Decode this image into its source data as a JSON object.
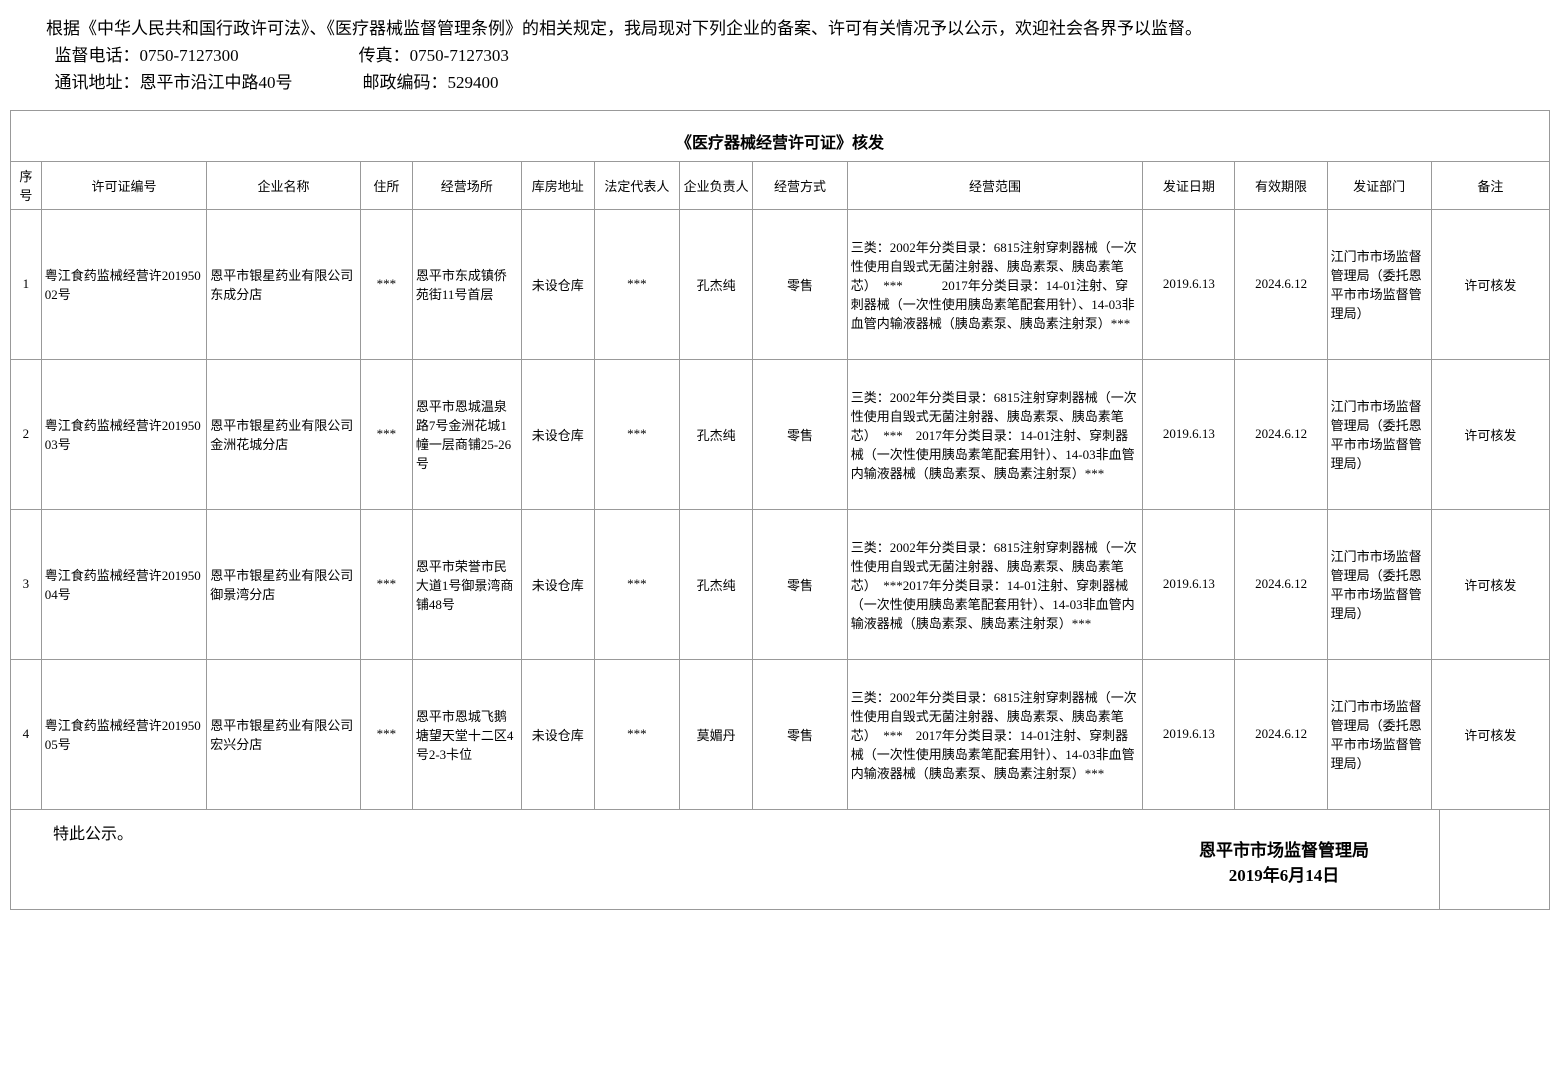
{
  "intro": {
    "line1": "根据《中华人民共和国行政许可法》、《医疗器械监督管理条例》的相关规定，我局现对下列企业的备案、许可有关情况予以公示，欢迎社会各界予以监督。",
    "contact1_label": "监督电话：",
    "contact1_value": "0750-7127300",
    "fax_label": "传真：",
    "fax_value": "0750-7127303",
    "addr_label": "通讯地址：",
    "addr_value": "恩平市沿江中路40号",
    "postal_label": "邮政编码：",
    "postal_value": "529400"
  },
  "table_title": "《医疗器械经营许可证》核发",
  "headers": {
    "seq": "序号",
    "license": "许可证编号",
    "company": "企业名称",
    "addr": "住所",
    "bizaddr": "经营场所",
    "warehouse": "库房地址",
    "legal": "法定代表人",
    "owner": "企业负责人",
    "mode": "经营方式",
    "scope": "经营范围",
    "issue": "发证日期",
    "valid": "有效期限",
    "dept": "发证部门",
    "note": "备注"
  },
  "rows": [
    {
      "seq": "1",
      "license": "粤江食药监械经营许20195002号",
      "company": "恩平市银星药业有限公司东成分店",
      "addr": "***",
      "bizaddr": "恩平市东成镇侨苑街11号首层",
      "warehouse": "未设仓库",
      "legal": "***",
      "owner": "孔杰纯",
      "mode": "零售",
      "scope": "三类：2002年分类目录：6815注射穿刺器械（一次性使用自毁式无菌注射器、胰岛素泵、胰岛素笔芯）　***　　　2017年分类目录：14-01注射、穿刺器械（一次性使用胰岛素笔配套用针）、14-03非血管内输液器械（胰岛素泵、胰岛素注射泵）***",
      "issue": "2019.6.13",
      "valid": "2024.6.12",
      "dept": "江门市市场监督管理局（委托恩平市市场监督管理局）",
      "note": "许可核发"
    },
    {
      "seq": "2",
      "license": "粤江食药监械经营许20195003号",
      "company": "恩平市银星药业有限公司金洲花城分店",
      "addr": "***",
      "bizaddr": "恩平市恩城温泉路7号金洲花城1幢一层商铺25-26号",
      "warehouse": "未设仓库",
      "legal": "***",
      "owner": "孔杰纯",
      "mode": "零售",
      "scope": "三类：2002年分类目录：6815注射穿刺器械（一次性使用自毁式无菌注射器、胰岛素泵、胰岛素笔芯）　***　2017年分类目录：14-01注射、穿刺器械（一次性使用胰岛素笔配套用针）、14-03非血管内输液器械（胰岛素泵、胰岛素注射泵）***",
      "issue": "2019.6.13",
      "valid": "2024.6.12",
      "dept": "江门市市场监督管理局（委托恩平市市场监督管理局）",
      "note": "许可核发"
    },
    {
      "seq": "3",
      "license": "粤江食药监械经营许20195004号",
      "company": "恩平市银星药业有限公司御景湾分店",
      "addr": "***",
      "bizaddr": "恩平市荣誉市民大道1号御景湾商铺48号",
      "warehouse": "未设仓库",
      "legal": "***",
      "owner": "孔杰纯",
      "mode": "零售",
      "scope": "三类：2002年分类目录：6815注射穿刺器械（一次性使用自毁式无菌注射器、胰岛素泵、胰岛素笔芯）　***2017年分类目录：14-01注射、穿刺器械（一次性使用胰岛素笔配套用针）、14-03非血管内输液器械（胰岛素泵、胰岛素注射泵）***",
      "issue": "2019.6.13",
      "valid": "2024.6.12",
      "dept": "江门市市场监督管理局（委托恩平市市场监督管理局）",
      "note": "许可核发"
    },
    {
      "seq": "4",
      "license": "粤江食药监械经营许20195005号",
      "company": "恩平市银星药业有限公司宏兴分店",
      "addr": "***",
      "bizaddr": "恩平市恩城飞鹅塘望天堂十二区4号2-3卡位",
      "warehouse": "未设仓库",
      "legal": "***",
      "owner": "莫媚丹",
      "mode": "零售",
      "scope": "三类：2002年分类目录：6815注射穿刺器械（一次性使用自毁式无菌注射器、胰岛素泵、胰岛素笔芯）　***　2017年分类目录：14-01注射、穿刺器械（一次性使用胰岛素笔配套用针）、14-03非血管内输液器械（胰岛素泵、胰岛素注射泵）***",
      "issue": "2019.6.13",
      "valid": "2024.6.12",
      "dept": "江门市市场监督管理局（委托恩平市市场监督管理局）",
      "note": "许可核发"
    }
  ],
  "footer": {
    "left": "特此公示。",
    "agency": "恩平市市场监督管理局",
    "date": "2019年6月14日"
  }
}
